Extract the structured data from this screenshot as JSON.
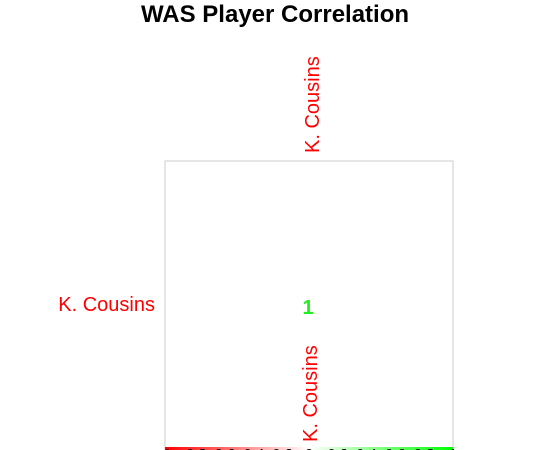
{
  "chart_data": {
    "type": "heatmap",
    "title": "WAS Player Correlation",
    "row_labels": [
      "K. Cousins"
    ],
    "col_labels": [
      "K. Cousins"
    ],
    "values": [
      [
        1
      ]
    ],
    "value_labels": [
      "1"
    ],
    "color_scale": {
      "min": -1,
      "max": 1,
      "ticks": [
        "-1",
        "-0.8",
        "-0.6",
        "-0.4",
        "-0.2",
        "0",
        "0.2",
        "0.4",
        "0.6",
        "0.8",
        "1"
      ],
      "low_color": "#ff0000",
      "high_color": "#00ff00"
    },
    "label_color": "#ff0000",
    "value_color": "#22ee22",
    "grid_color": "#cccccc"
  }
}
